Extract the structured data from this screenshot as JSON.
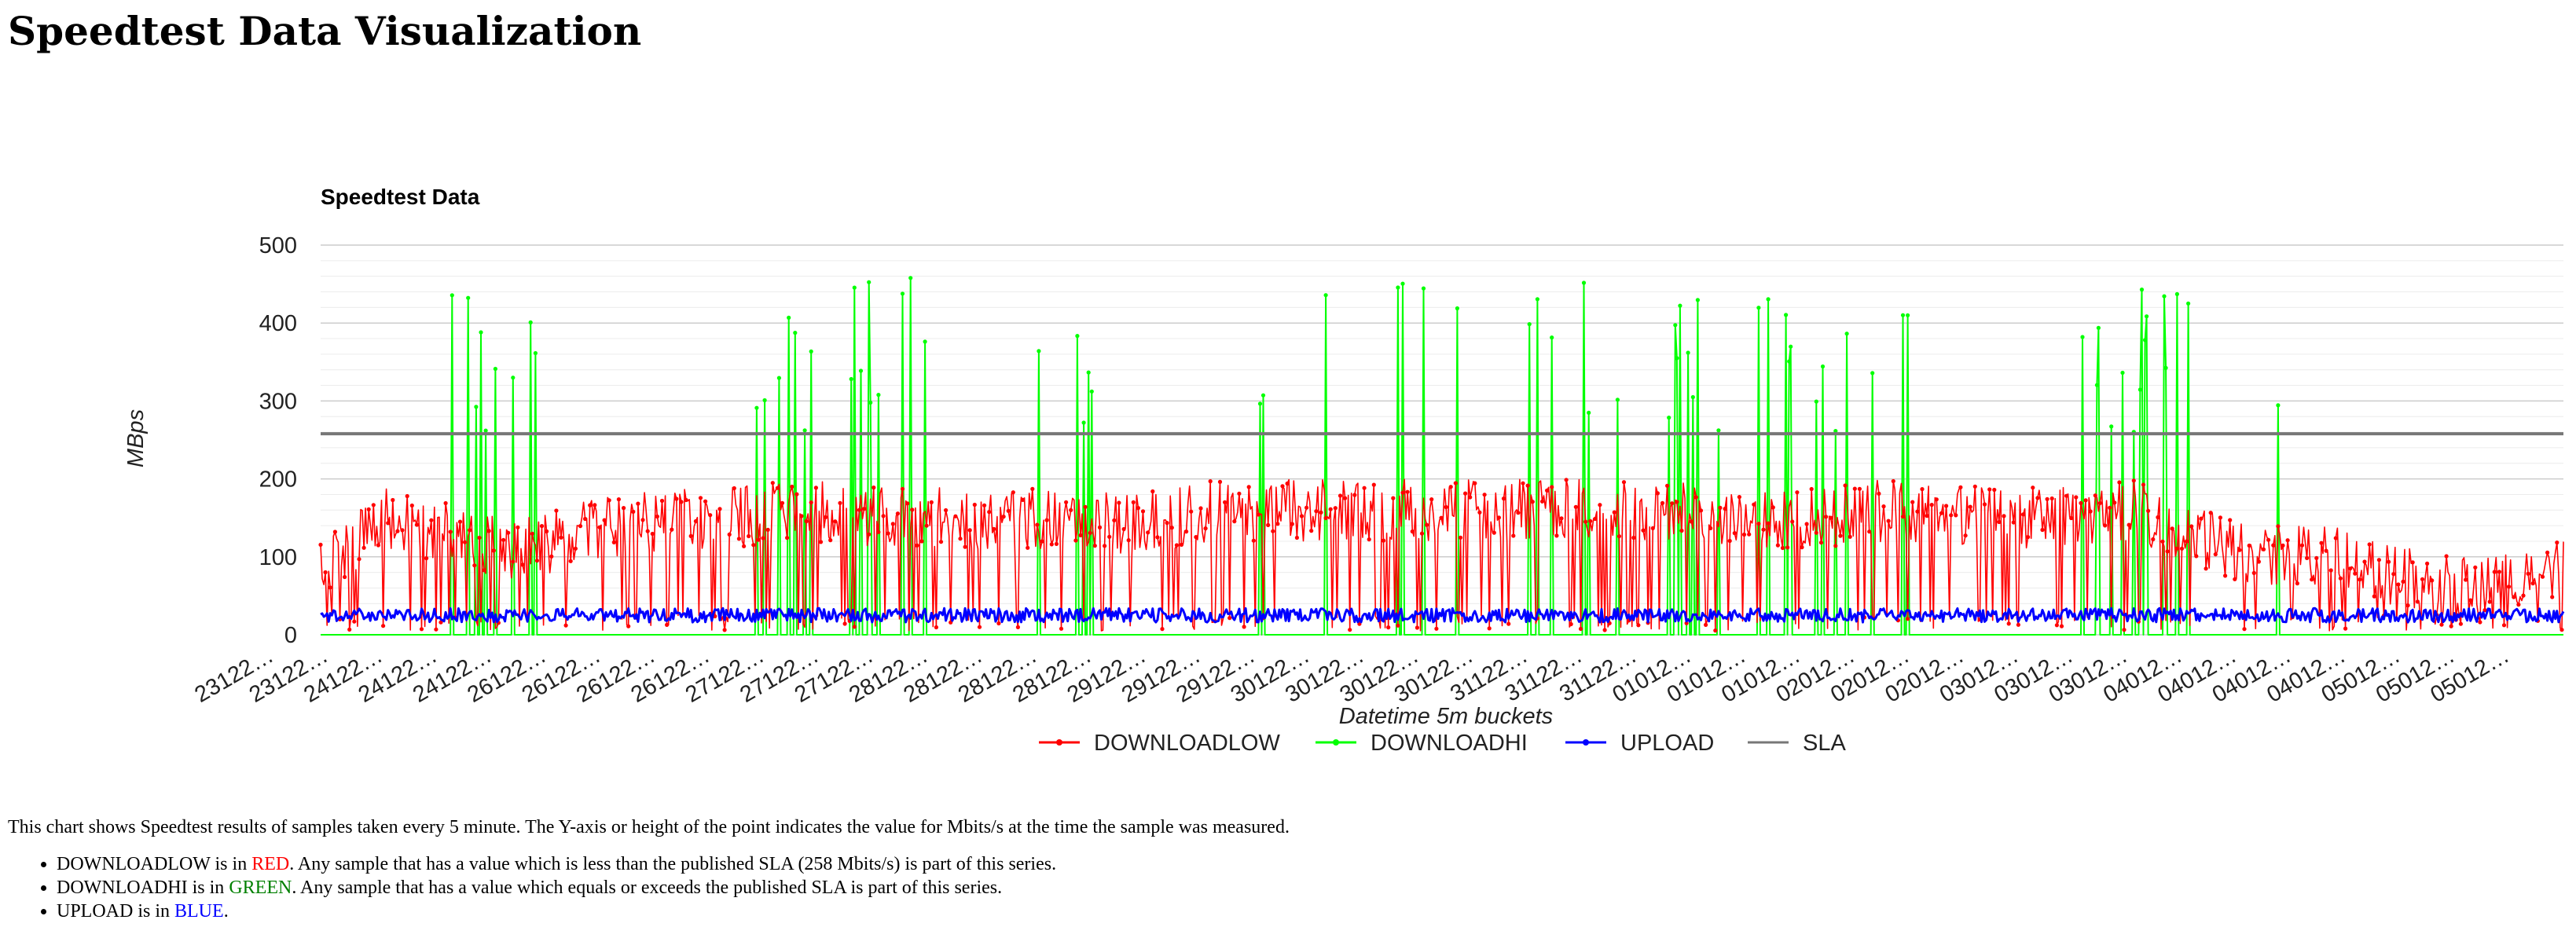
{
  "page": {
    "title": "Speedtest Data Visualization"
  },
  "chart_data": {
    "type": "line",
    "title": "Speedtest Data",
    "xlabel": "Datetime 5m buckets",
    "ylabel": "MBps",
    "ylim": [
      0,
      500
    ],
    "yticks": [
      0,
      100,
      200,
      300,
      400,
      500
    ],
    "grid": true,
    "legend_position": "bottom",
    "x_tick_labels": [
      "23122…",
      "23122…",
      "24122…",
      "24122…",
      "24122…",
      "26122…",
      "26122…",
      "26122…",
      "26122…",
      "27122…",
      "27122…",
      "27122…",
      "28122…",
      "28122…",
      "28122…",
      "28122…",
      "29122…",
      "29122…",
      "29122…",
      "30122…",
      "30122…",
      "30122…",
      "30122…",
      "31122…",
      "31122…",
      "31122…",
      "01012…",
      "01012…",
      "01012…",
      "02012…",
      "02012…",
      "02012…",
      "03012…",
      "03012…",
      "03012…",
      "04012…",
      "04012…",
      "04012…",
      "04012…",
      "05012…",
      "05012…",
      "05012…"
    ],
    "sla_value": 258,
    "series": [
      {
        "name": "DOWNLOADLOW",
        "color": "#ff0000",
        "marker": "dot"
      },
      {
        "name": "DOWNLOADHI",
        "color": "#00ff00",
        "marker": "dot"
      },
      {
        "name": "UPLOAD",
        "color": "#0000ff",
        "marker": "dot"
      },
      {
        "name": "SLA",
        "color": "#777777",
        "marker": "none"
      }
    ],
    "profile": {
      "x_segments": [
        0,
        0.03,
        0.07,
        0.09,
        0.13,
        0.18,
        0.22,
        0.25,
        0.29,
        0.33,
        0.36,
        0.4,
        0.44,
        0.48,
        0.52,
        0.55,
        0.59,
        0.63,
        0.67,
        0.7,
        0.74,
        0.78,
        0.81,
        0.84,
        0.87,
        0.9,
        0.92,
        0.95,
        0.97,
        1.0
      ],
      "low_mean": [
        80,
        150,
        120,
        110,
        140,
        150,
        160,
        150,
        150,
        150,
        140,
        160,
        160,
        160,
        160,
        160,
        160,
        150,
        150,
        160,
        150,
        150,
        160,
        120,
        100,
        100,
        80,
        60,
        60,
        90
      ],
      "upload_mean": 25
    }
  },
  "notes": {
    "intro": "This chart shows Speedtest results of samples taken every 5 minute. The Y-axis or height of the point indicates the value for Mbits/s at the time the sample was measured.",
    "items": [
      {
        "prefix": "DOWNLOADLOW is in ",
        "color_word": "RED",
        "suffix": ". Any sample that has a value which is less than the published SLA (258 Mbits/s) is part of this series."
      },
      {
        "prefix": "DOWNLOADHI is in ",
        "color_word": "GREEN",
        "suffix": ". Any sample that has a value which equals or exceeds the published SLA is part of this series."
      },
      {
        "prefix": "UPLOAD is in ",
        "color_word": "BLUE",
        "suffix": "."
      }
    ]
  }
}
